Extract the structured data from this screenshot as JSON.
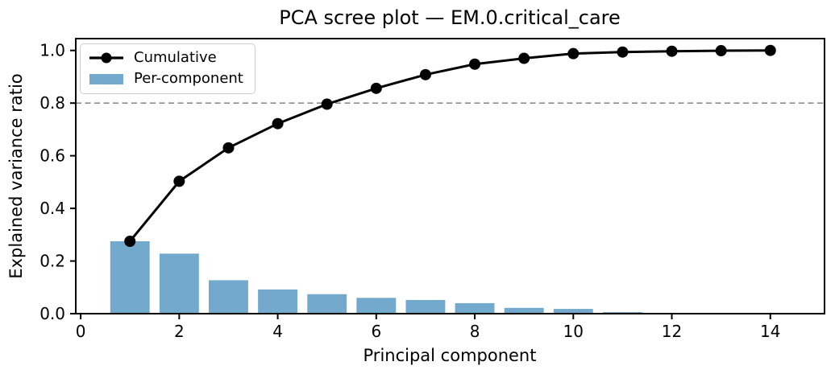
{
  "chart_data": {
    "type": "bar",
    "title": "PCA scree plot — EM.0.critical_care",
    "xlabel": "Principal component",
    "ylabel": "Explained variance ratio",
    "x": [
      1,
      2,
      3,
      4,
      5,
      6,
      7,
      8,
      9,
      10,
      11,
      12,
      13,
      14
    ],
    "series": [
      {
        "name": "Cumulative",
        "type": "line",
        "color": "#000000",
        "values": [
          0.275,
          0.503,
          0.63,
          0.722,
          0.796,
          0.856,
          0.908,
          0.948,
          0.97,
          0.988,
          0.994,
          0.997,
          0.999,
          1.0
        ]
      },
      {
        "name": "Per-component",
        "type": "bar",
        "color": "#72a9cd",
        "values": [
          0.275,
          0.228,
          0.127,
          0.092,
          0.074,
          0.06,
          0.052,
          0.04,
          0.022,
          0.018,
          0.006,
          0.003,
          0.002,
          0.001
        ]
      }
    ],
    "threshold_line": {
      "y": 0.8,
      "style": "dashed",
      "color": "#8c8c8c"
    },
    "axes": {
      "xlim": [
        -0.1,
        15.1
      ],
      "ylim": [
        0,
        1.045
      ],
      "xticks": [
        0,
        2,
        4,
        6,
        8,
        10,
        12,
        14
      ],
      "xtick_labels": [
        "0",
        "2",
        "4",
        "6",
        "8",
        "10",
        "12",
        "14"
      ],
      "yticks": [
        0.0,
        0.2,
        0.4,
        0.6,
        0.8,
        1.0
      ],
      "ytick_labels": [
        "0.0",
        "0.2",
        "0.4",
        "0.6",
        "0.8",
        "1.0"
      ],
      "grid": false
    },
    "legend": {
      "position": "upper-left"
    },
    "bar_width_units": 0.8
  },
  "colors": {
    "background": "#ffffff",
    "spine": "#000000",
    "tick": "#000000",
    "legend_border": "#cccccc"
  }
}
